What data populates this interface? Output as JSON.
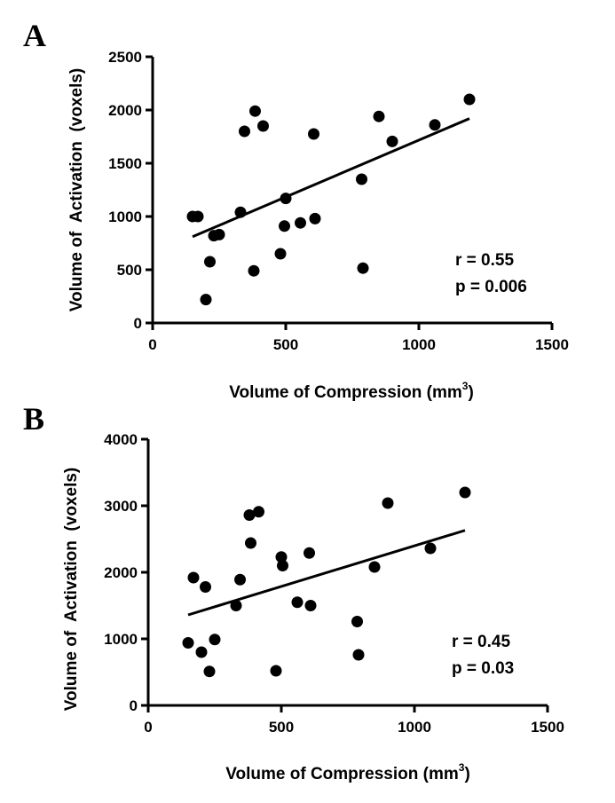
{
  "chart_data": [
    {
      "panel": "A",
      "type": "scatter",
      "xlabel": "Volume of Compression (mm",
      "xlabel_superscript": "3",
      "xlabel_close": ")",
      "ylabel": "Volume of  Activation  (voxels)",
      "xlim": [
        0,
        1500
      ],
      "ylim": [
        0,
        2500
      ],
      "xticks": [
        0,
        500,
        1000,
        1500
      ],
      "yticks": [
        0,
        500,
        1000,
        1500,
        2000,
        2500
      ],
      "points": [
        {
          "x": 150,
          "y": 1000
        },
        {
          "x": 170,
          "y": 1000
        },
        {
          "x": 200,
          "y": 220
        },
        {
          "x": 215,
          "y": 575
        },
        {
          "x": 230,
          "y": 820
        },
        {
          "x": 250,
          "y": 830
        },
        {
          "x": 330,
          "y": 1040
        },
        {
          "x": 345,
          "y": 1800
        },
        {
          "x": 380,
          "y": 490
        },
        {
          "x": 385,
          "y": 1990
        },
        {
          "x": 415,
          "y": 1850
        },
        {
          "x": 480,
          "y": 650
        },
        {
          "x": 495,
          "y": 910
        },
        {
          "x": 500,
          "y": 1170
        },
        {
          "x": 555,
          "y": 940
        },
        {
          "x": 605,
          "y": 1775
        },
        {
          "x": 610,
          "y": 980
        },
        {
          "x": 785,
          "y": 1350
        },
        {
          "x": 790,
          "y": 515
        },
        {
          "x": 850,
          "y": 1940
        },
        {
          "x": 900,
          "y": 1705
        },
        {
          "x": 1060,
          "y": 1860
        },
        {
          "x": 1190,
          "y": 2100
        }
      ],
      "fit_line": {
        "x": [
          150,
          1190
        ],
        "y": [
          810,
          1920
        ]
      },
      "stats": {
        "r": "r = 0.55",
        "p": "p = 0.006"
      }
    },
    {
      "panel": "B",
      "type": "scatter",
      "xlabel": "Volume of Compression (mm",
      "xlabel_superscript": "3",
      "xlabel_close": ")",
      "ylabel": "Volume of  Activation  (voxels)",
      "xlim": [
        0,
        1500
      ],
      "ylim": [
        0,
        4000
      ],
      "xticks": [
        0,
        500,
        1000,
        1500
      ],
      "yticks": [
        0,
        1000,
        2000,
        3000,
        4000
      ],
      "points": [
        {
          "x": 150,
          "y": 940
        },
        {
          "x": 170,
          "y": 1920
        },
        {
          "x": 200,
          "y": 800
        },
        {
          "x": 215,
          "y": 1780
        },
        {
          "x": 230,
          "y": 510
        },
        {
          "x": 250,
          "y": 990
        },
        {
          "x": 330,
          "y": 1500
        },
        {
          "x": 345,
          "y": 1890
        },
        {
          "x": 380,
          "y": 2860
        },
        {
          "x": 385,
          "y": 2440
        },
        {
          "x": 415,
          "y": 2910
        },
        {
          "x": 480,
          "y": 520
        },
        {
          "x": 500,
          "y": 2230
        },
        {
          "x": 505,
          "y": 2100
        },
        {
          "x": 560,
          "y": 1550
        },
        {
          "x": 605,
          "y": 2290
        },
        {
          "x": 610,
          "y": 1500
        },
        {
          "x": 785,
          "y": 1260
        },
        {
          "x": 790,
          "y": 760
        },
        {
          "x": 850,
          "y": 2080
        },
        {
          "x": 900,
          "y": 3040
        },
        {
          "x": 1060,
          "y": 2360
        },
        {
          "x": 1190,
          "y": 3200
        }
      ],
      "fit_line": {
        "x": [
          150,
          1190
        ],
        "y": [
          1360,
          2630
        ]
      },
      "stats": {
        "r": "r = 0.45",
        "p": "p = 0.03"
      }
    }
  ]
}
